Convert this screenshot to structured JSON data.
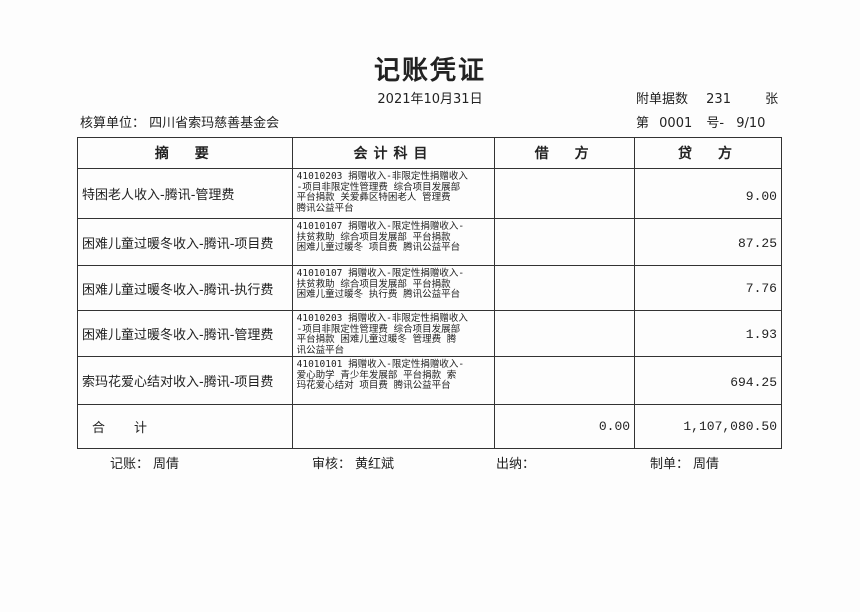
{
  "title": "记账凭证",
  "date": "2021年10月31日",
  "attachments": {
    "label": "附单据数",
    "count": "231",
    "unit": "张"
  },
  "unit": {
    "label": "核算单位：",
    "value": "四川省索玛慈善基金会"
  },
  "voucher": {
    "prefix": "第",
    "number": "0001",
    "suffix": "号-",
    "page": "9/10"
  },
  "headers": [
    "摘　要",
    "会计科目",
    "借　方",
    "贷　方"
  ],
  "rows": [
    {
      "summary": "特困老人收入-腾讯-管理费",
      "account": [
        "41010203 捐赠收入-非限定性捐赠收入",
        "-项目非限定性管理费 综合项目发展部",
        "平台捐款 关爱彝区特困老人 管理费",
        "腾讯公益平台"
      ],
      "debit": "",
      "credit": "9.00"
    },
    {
      "summary": "困难儿童过暖冬收入-腾讯-项目费",
      "account": [
        "41010107 捐赠收入-限定性捐赠收入-",
        "扶贫救助 综合项目发展部 平台捐款",
        "困难儿童过暖冬 项目费 腾讯公益平台"
      ],
      "debit": "",
      "credit": "87.25"
    },
    {
      "summary": "困难儿童过暖冬收入-腾讯-执行费",
      "account": [
        "41010107 捐赠收入-限定性捐赠收入-",
        "扶贫救助 综合项目发展部 平台捐款",
        "困难儿童过暖冬 执行费 腾讯公益平台"
      ],
      "debit": "",
      "credit": "7.76"
    },
    {
      "summary": "困难儿童过暖冬收入-腾讯-管理费",
      "account": [
        "41010203 捐赠收入-非限定性捐赠收入",
        "-项目非限定性管理费 综合项目发展部",
        "平台捐款 困难儿童过暖冬 管理费 腾",
        "讯公益平台"
      ],
      "debit": "",
      "credit": "1.93"
    },
    {
      "summary": "索玛花爱心结对收入-腾讯-项目费",
      "account": [
        "41010101 捐赠收入-限定性捐赠收入-",
        "爱心助学 青少年发展部 平台捐款 索",
        "玛花爱心结对 项目费 腾讯公益平台"
      ],
      "debit": "",
      "credit": "694.25"
    }
  ],
  "total": {
    "label": "合　计",
    "debit": "0.00",
    "credit": "1,107,080.50"
  },
  "footer": {
    "bookkeeper_label": "记账：",
    "bookkeeper": "周倩",
    "auditor_label": "审核：",
    "auditor": "黄红斌",
    "cashier_label": "出纳：",
    "cashier": "",
    "maker_label": "制单：",
    "maker": "周倩"
  }
}
